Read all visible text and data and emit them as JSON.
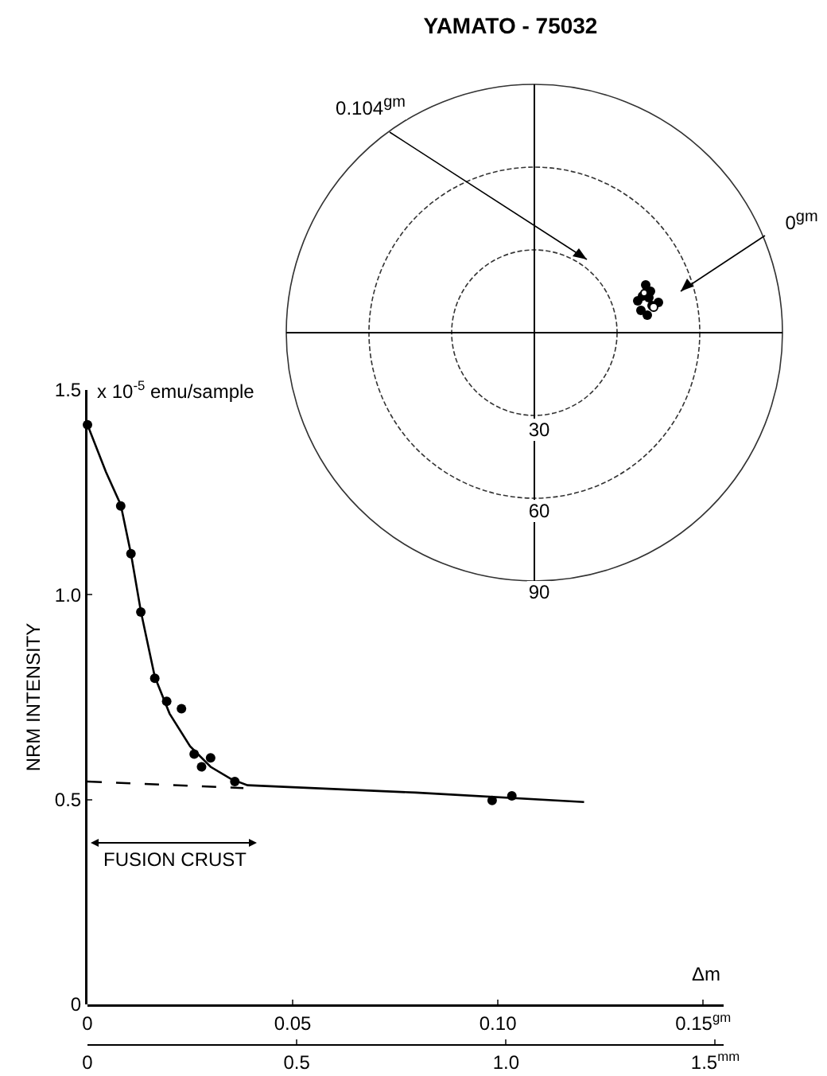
{
  "chart_data": [
    {
      "type": "other",
      "title": "YAMATO - 75032",
      "annotations": [
        "0.104$^{gm}$",
        "0$^{gm}$",
        "30",
        "60",
        "90"
      ]
    },
    {
      "type": "scatter",
      "ylabel": "NRM INTENSITY",
      "xlabel": "Δm",
      "xlim": [
        0,
        0.155
      ],
      "xticks": [
        0,
        0.05,
        {
          "value": 0.1,
          "label": "0.10"
        },
        {
          "value": 0.15,
          "label": "0.15$^{gm}$"
        }
      ],
      "x2lim": [
        0,
        1.52
      ],
      "x2ticks": [
        0,
        0.5,
        {
          "value": 1,
          "label": "1.0"
        },
        {
          "value": 1.5,
          "label": "1.5$^{mm}$"
        }
      ],
      "ylim": [
        0,
        1.5
      ],
      "yticks": [
        0,
        0.5,
        {
          "value": 1,
          "label": "1.0"
        },
        1.5
      ],
      "grid": false,
      "annotations": [
        "x 10$^{-5}$ emu/sample",
        "FUSION CRUST"
      ],
      "series": [
        {
          "type": "scatter",
          "color": "#000000",
          "marker": "circle",
          "x": [
            0,
            0.0081,
            0.0106,
            0.013,
            0.0164,
            0.0193,
            0.0229,
            0.026,
            0.0278,
            0.03,
            0.0359,
            0.0986,
            0.1034
          ],
          "values": [
            1.415,
            1.217,
            1.1,
            0.958,
            0.796,
            0.74,
            0.722,
            0.611,
            0.58,
            0.602,
            0.544,
            0.498,
            0.509
          ]
        },
        {
          "type": "line",
          "color": "#000000",
          "marker": "none",
          "line_style": "solid",
          "x": [
            0,
            0.0045,
            0.0081,
            0.0106,
            0.013,
            0.0164,
            0.02,
            0.025,
            0.03,
            0.035,
            0.039,
            0.08,
            0.121
          ],
          "values": [
            1.415,
            1.3,
            1.22,
            1.1,
            0.96,
            0.8,
            0.71,
            0.63,
            0.58,
            0.55,
            0.535,
            0.517,
            0.494
          ]
        },
        {
          "type": "line",
          "color": "#000000",
          "marker": "none",
          "line_style": "dashed",
          "x": [
            0,
            0.038
          ],
          "values": [
            0.544,
            0.528
          ]
        }
      ]
    }
  ]
}
